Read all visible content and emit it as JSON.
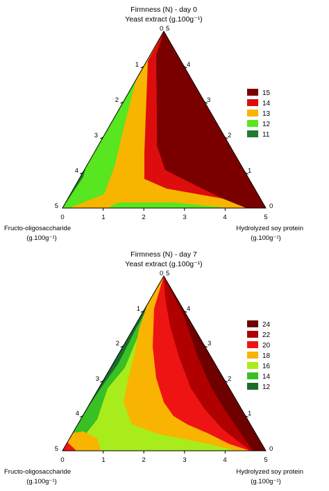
{
  "chart_data": [
    {
      "type": "ternary-contour",
      "title": "Firmness (N) - day 0",
      "top_axis_label": "Yeast extract (g.100g⁻¹)",
      "left_corner_label": [
        "Fructo-oligosaccharide",
        "(g.100g⁻¹)"
      ],
      "right_corner_label": [
        "Hydrolyzed soy protein",
        "(g.100g⁻¹)"
      ],
      "ticks": [
        "0",
        "1",
        "2",
        "3",
        "4",
        "5"
      ],
      "legend": [
        {
          "label": "15",
          "color": "#7a0000"
        },
        {
          "label": "14",
          "color": "#dd0d0d"
        },
        {
          "label": "13",
          "color": "#f7b500"
        },
        {
          "label": "12",
          "color": "#57e61f"
        },
        {
          "label": "11",
          "color": "#1e7d2c"
        }
      ]
    },
    {
      "type": "ternary-contour",
      "title": "Firmness (N) - day 7",
      "top_axis_label": "Yeast extract (g.100g⁻¹)",
      "left_corner_label": [
        "Fructo-oligosaccharide",
        "(g.100g⁻¹)"
      ],
      "right_corner_label": [
        "Hydrolyzed soy protein",
        "(g.100g⁻¹)"
      ],
      "ticks": [
        "0",
        "1",
        "2",
        "3",
        "4",
        "5"
      ],
      "legend": [
        {
          "label": "24",
          "color": "#6e0000"
        },
        {
          "label": "22",
          "color": "#b00000"
        },
        {
          "label": "20",
          "color": "#ee1414"
        },
        {
          "label": "18",
          "color": "#f8b400"
        },
        {
          "label": "16",
          "color": "#a8ec1c"
        },
        {
          "label": "14",
          "color": "#38c024"
        },
        {
          "label": "12",
          "color": "#1a6a2e"
        }
      ]
    }
  ]
}
